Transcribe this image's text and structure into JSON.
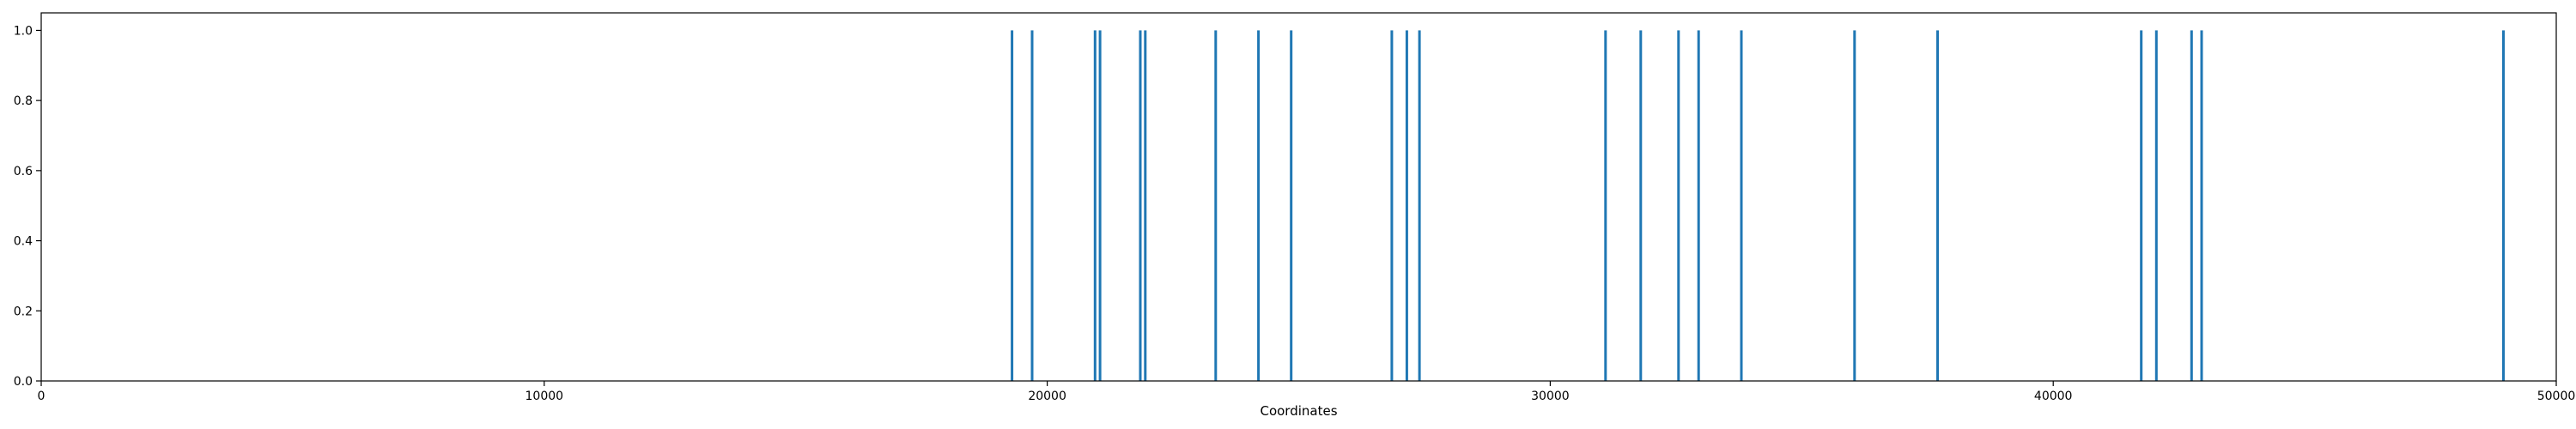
{
  "chart_data": {
    "type": "bar",
    "title": "",
    "xlabel": "Coordinates",
    "ylabel": "",
    "xlim": [
      0,
      50000
    ],
    "ylim": [
      0,
      1.05
    ],
    "grid": false,
    "legend": "none",
    "color": "#1f77b4",
    "x_ticks": [
      0,
      10000,
      20000,
      30000,
      40000,
      50000
    ],
    "x_tick_labels": [
      "0",
      "10000",
      "20000",
      "30000",
      "40000",
      "50000"
    ],
    "y_ticks": [
      0.0,
      0.2,
      0.4,
      0.6,
      0.8,
      1.0
    ],
    "y_tick_labels": [
      "0.0",
      "0.2",
      "0.4",
      "0.6",
      "0.8",
      "1.0"
    ],
    "series": [
      {
        "x": [
          19300,
          19700,
          20950,
          21050,
          21850,
          21950,
          23350,
          24200,
          24850,
          26850,
          27150,
          27400,
          31100,
          31800,
          32550,
          32950,
          33800,
          36050,
          37700,
          41750,
          42050,
          42750,
          42950,
          48950
        ],
        "values": [
          1,
          1,
          1,
          1,
          1,
          1,
          1,
          1,
          1,
          1,
          1,
          1,
          1,
          1,
          1,
          1,
          1,
          1,
          1,
          1,
          1,
          1,
          1,
          1
        ]
      }
    ]
  }
}
